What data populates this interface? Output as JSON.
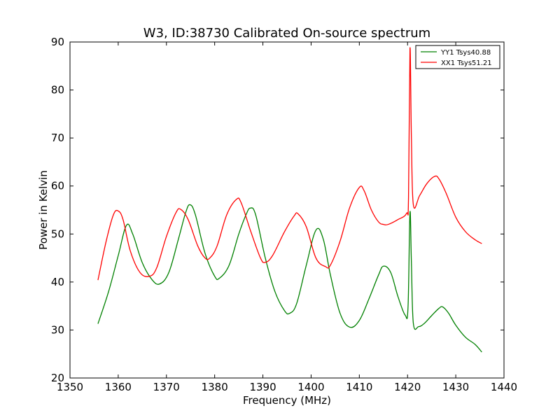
{
  "chart_data": {
    "type": "line",
    "title": "W3, ID:38730 Calibrated On-source spectrum",
    "xlabel": "Frequency (MHz)",
    "ylabel": "Power in Kelvin",
    "xlim": [
      1350,
      1440
    ],
    "ylim": [
      20,
      90
    ],
    "xticks": [
      "1350",
      "1360",
      "1370",
      "1380",
      "1390",
      "1400",
      "1410",
      "1420",
      "1430",
      "1440"
    ],
    "yticks": [
      "20",
      "30",
      "40",
      "50",
      "60",
      "70",
      "80",
      "90"
    ],
    "grid": false,
    "legend_position": "top-right",
    "series": [
      {
        "name": "YY1 Tsys40.88",
        "color": "#008000",
        "x": [
          1355.8,
          1358.0,
          1360.0,
          1361.7,
          1363.0,
          1365.0,
          1367.0,
          1368.6,
          1370.5,
          1372.5,
          1374.0,
          1374.9,
          1376.0,
          1378.0,
          1380.0,
          1381.0,
          1383.0,
          1385.0,
          1386.5,
          1387.4,
          1388.5,
          1390.5,
          1392.5,
          1394.5,
          1395.6,
          1397.0,
          1399.0,
          1401.0,
          1402.5,
          1404.0,
          1406.0,
          1408.0,
          1410.0,
          1412.0,
          1414.0,
          1415.0,
          1416.5,
          1418.0,
          1419.5,
          1420.1,
          1420.5,
          1420.8,
          1421.2,
          1422.3,
          1423.5,
          1425.0,
          1426.5,
          1427.3,
          1428.5,
          1430.0,
          1432.0,
          1434.0,
          1435.4
        ],
        "y": [
          31.3,
          38.0,
          45.5,
          51.8,
          50.0,
          44.0,
          40.5,
          39.6,
          42.0,
          49.0,
          54.5,
          56.1,
          54.0,
          46.0,
          41.2,
          40.8,
          43.5,
          50.0,
          54.0,
          55.4,
          54.0,
          45.0,
          38.0,
          34.0,
          33.5,
          35.5,
          43.5,
          50.8,
          49.0,
          41.5,
          33.5,
          30.6,
          32.0,
          36.5,
          41.5,
          43.3,
          42.0,
          37.0,
          33.1,
          34.8,
          54.5,
          44.0,
          31.4,
          30.7,
          31.4,
          33.0,
          34.5,
          34.8,
          33.5,
          31.0,
          28.5,
          27.0,
          25.4
        ]
      },
      {
        "name": "XX1 Tsys51.21",
        "color": "#ff0000",
        "x": [
          1355.8,
          1357.5,
          1359.0,
          1360.0,
          1361.0,
          1362.5,
          1364.5,
          1366.5,
          1368.0,
          1370.0,
          1372.0,
          1373.0,
          1374.5,
          1376.5,
          1378.0,
          1379.0,
          1380.5,
          1382.5,
          1384.5,
          1385.5,
          1387.5,
          1389.5,
          1390.5,
          1392.0,
          1394.5,
          1396.5,
          1397.3,
          1399.0,
          1401.0,
          1403.0,
          1404.0,
          1406.0,
          1408.0,
          1410.0,
          1411.0,
          1412.5,
          1414.0,
          1415.0,
          1416.0,
          1418.0,
          1419.8,
          1420.2,
          1420.5,
          1420.8,
          1421.2,
          1422.5,
          1424.0,
          1425.6,
          1426.5,
          1428.0,
          1430.0,
          1432.0,
          1434.0,
          1435.4
        ],
        "y": [
          40.4,
          48.5,
          54.0,
          54.8,
          53.0,
          46.5,
          42.0,
          41.2,
          43.0,
          49.5,
          54.5,
          55.1,
          53.0,
          47.5,
          45.0,
          45.0,
          47.5,
          54.0,
          57.2,
          56.5,
          50.5,
          45.0,
          44.1,
          45.5,
          50.5,
          53.8,
          54.2,
          51.5,
          45.0,
          43.2,
          43.5,
          48.5,
          55.5,
          59.7,
          59.0,
          55.0,
          52.5,
          52.0,
          52.0,
          53.0,
          54.3,
          57.6,
          88.6,
          70.0,
          56.1,
          58.0,
          60.5,
          62.0,
          61.5,
          58.5,
          53.5,
          50.5,
          48.8,
          48.0
        ]
      }
    ]
  }
}
